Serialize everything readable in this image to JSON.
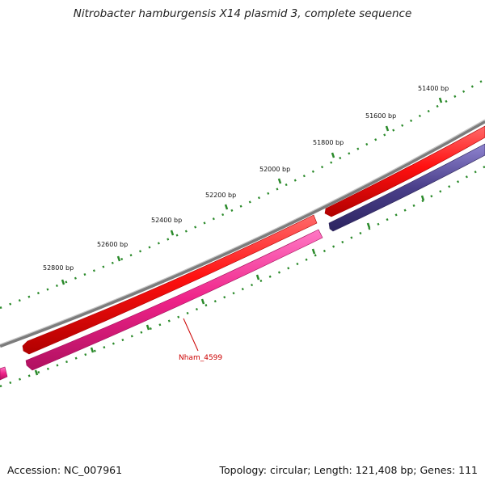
{
  "title": "Nitrobacter hamburgensis X14 plasmid 3, complete sequence",
  "accession": "Accession: NC_007961",
  "summary": "Topology: circular; Length: 121,408 bp; Genes: 111",
  "ticks": [
    "51400 bp",
    "51600 bp",
    "51800 bp",
    "52000 bp",
    "52200 bp",
    "52400 bp",
    "52600 bp",
    "52800 bp"
  ],
  "gene_label": "Nham_4599",
  "colors": {
    "backbone": "#8a8a8a",
    "tick": "#2a8a2a",
    "gene_red": "#ee1111",
    "gene_pink": "#ee2288",
    "gene_purple": "#4a3f8a",
    "label": "#cc0000"
  }
}
